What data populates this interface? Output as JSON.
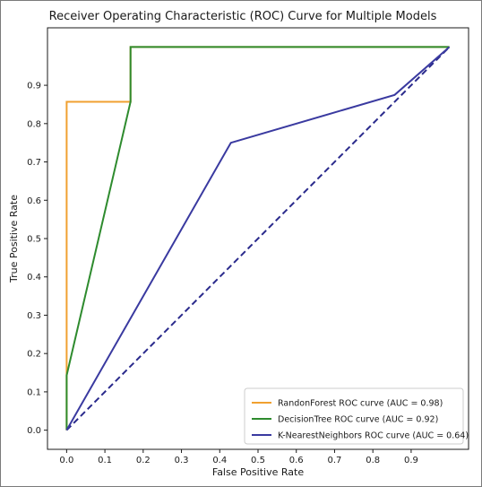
{
  "chart_data": {
    "type": "line",
    "title": "Receiver Operating Characteristic (ROC) Curve for Multiple Models",
    "xlabel": "False Positive Rate",
    "ylabel": "True Positive Rate",
    "xlim": [
      -0.05,
      1.05
    ],
    "ylim": [
      -0.05,
      1.05
    ],
    "xticks": [
      "0.0",
      "0.1",
      "0.2",
      "0.3",
      "0.4",
      "0.5",
      "0.6",
      "0.7",
      "0.8",
      "0.9"
    ],
    "yticks": [
      "0.0",
      "0.1",
      "0.2",
      "0.3",
      "0.4",
      "0.5",
      "0.6",
      "0.7",
      "0.8",
      "0.9"
    ],
    "grid": false,
    "legend_position": "lower-right",
    "series": [
      {
        "name": "RandonForest ROC curve (AUC = 0.98)",
        "color": "#f0a030",
        "dashed": false,
        "x": [
          0.0,
          0.0,
          0.0,
          0.167,
          0.167,
          1.0
        ],
        "y": [
          0.0,
          0.143,
          0.857,
          0.857,
          1.0,
          1.0
        ]
      },
      {
        "name": "DecisionTree ROC curve (AUC = 0.92)",
        "color": "#2e8b2e",
        "dashed": false,
        "x": [
          0.0,
          0.0,
          0.167,
          0.167,
          1.0
        ],
        "y": [
          0.0,
          0.143,
          0.857,
          1.0,
          1.0
        ]
      },
      {
        "name": "K-NearestNeighbors ROC curve (AUC = 0.64)",
        "color": "#3a3aa0",
        "dashed": false,
        "x": [
          0.0,
          0.429,
          0.857,
          1.0
        ],
        "y": [
          0.0,
          0.75,
          0.875,
          1.0
        ]
      },
      {
        "name": "",
        "color": "#2a2a8c",
        "dashed": true,
        "x": [
          0.0,
          1.0
        ],
        "y": [
          0.0,
          1.0
        ]
      }
    ]
  }
}
